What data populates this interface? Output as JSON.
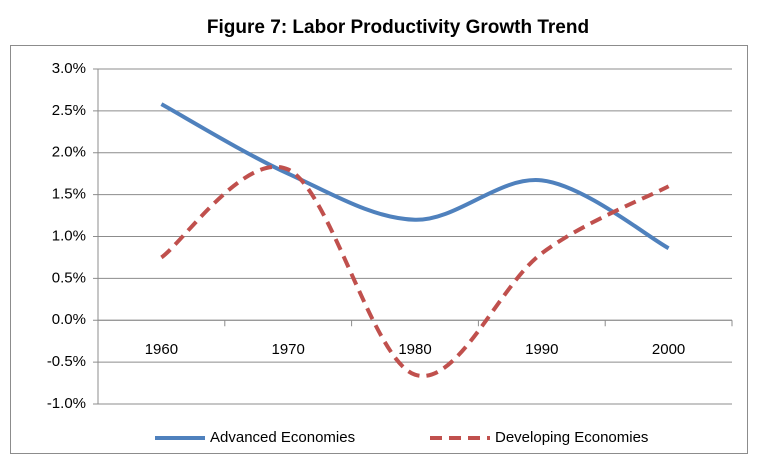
{
  "chart_data": {
    "type": "line",
    "title": "Figure 7: Labor Productivity Growth Trend",
    "categories": [
      "1960",
      "1970",
      "1980",
      "1990",
      "2000"
    ],
    "series": [
      {
        "name": "Advanced Economies",
        "color": "#4f81bd",
        "dash": false,
        "values": [
          2.58,
          1.75,
          1.2,
          1.67,
          0.86
        ]
      },
      {
        "name": "Developing Economies",
        "color": "#c0504d",
        "dash": true,
        "values": [
          0.75,
          1.8,
          -0.65,
          0.8,
          1.6
        ]
      }
    ],
    "ylim": [
      -1,
      3
    ],
    "yticks": [
      {
        "value": -1,
        "label": "-1.0%"
      },
      {
        "value": -0.5,
        "label": "-0.5%"
      },
      {
        "value": 0,
        "label": "0.0%"
      },
      {
        "value": 0.5,
        "label": "0.5%"
      },
      {
        "value": 1,
        "label": "1.0%"
      },
      {
        "value": 1.5,
        "label": "1.5%"
      },
      {
        "value": 2,
        "label": "2.0%"
      },
      {
        "value": 2.5,
        "label": "2.5%"
      },
      {
        "value": 3,
        "label": "3.0%"
      }
    ],
    "grid": true,
    "smooth": true,
    "legend": "bottom"
  }
}
